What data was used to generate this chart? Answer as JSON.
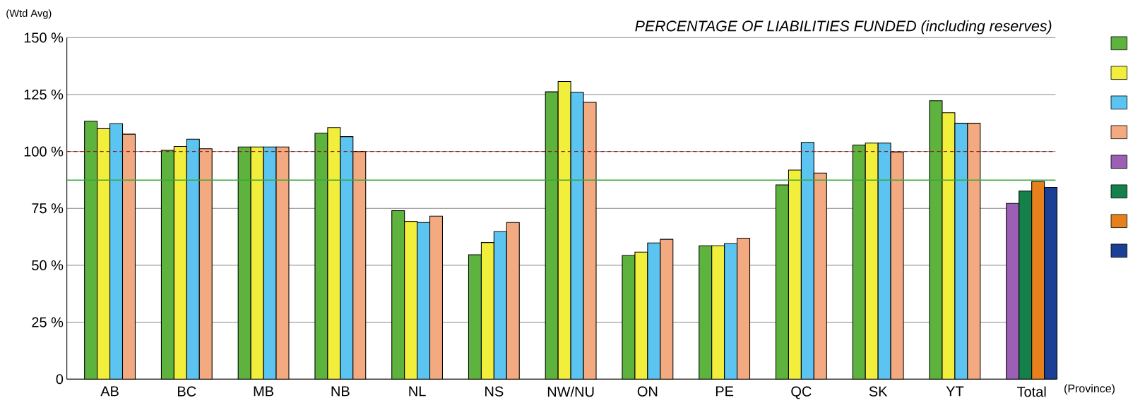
{
  "chart_data": {
    "type": "bar",
    "title": "PERCENTAGE OF LIABILITIES FUNDED (including reserves)",
    "ylabel": "(Wtd Avg)",
    "xlabel": "(Province)",
    "categories": [
      "AB",
      "BC",
      "MB",
      "NB",
      "NL",
      "NS",
      "NW/NU",
      "ON",
      "PE",
      "QC",
      "SK",
      "YT",
      "Total"
    ],
    "series": [
      {
        "color": "#5db33d",
        "values": [
          113.3,
          100.5,
          102,
          108,
          74,
          54.6,
          126.2,
          54.3,
          58.6,
          85.3,
          102.8,
          122.3,
          null
        ]
      },
      {
        "color": "#f2ee3c",
        "values": [
          110,
          102.2,
          102,
          110.5,
          69.3,
          60,
          130.7,
          55.8,
          58.6,
          91.8,
          103.7,
          117,
          null
        ]
      },
      {
        "color": "#5bc4f0",
        "values": [
          112.2,
          105.4,
          102,
          106.5,
          68.8,
          64.8,
          126,
          59.8,
          59.5,
          104,
          103.7,
          112.4,
          null
        ]
      },
      {
        "color": "#f4aa80",
        "values": [
          107.6,
          101.2,
          102,
          100,
          71.6,
          68.8,
          121.6,
          61.4,
          61.9,
          90.5,
          99.7,
          112.4,
          null
        ]
      },
      {
        "color": "#9b5fb5",
        "values": [
          null,
          null,
          null,
          null,
          null,
          null,
          null,
          null,
          null,
          null,
          null,
          null,
          77.2
        ]
      },
      {
        "color": "#14804a",
        "values": [
          null,
          null,
          null,
          null,
          null,
          null,
          null,
          null,
          null,
          null,
          null,
          null,
          82.6
        ]
      },
      {
        "color": "#e5801c",
        "values": [
          null,
          null,
          null,
          null,
          null,
          null,
          null,
          null,
          null,
          null,
          null,
          null,
          86.8
        ]
      },
      {
        "color": "#1a3f94",
        "values": [
          null,
          null,
          null,
          null,
          null,
          null,
          null,
          null,
          null,
          null,
          null,
          null,
          84.2
        ]
      }
    ],
    "ylim": [
      0,
      150
    ],
    "yticks": [
      0,
      {
        "value": 25,
        "label": "25 %"
      },
      {
        "value": 50,
        "label": "50 %"
      },
      {
        "value": 75,
        "label": "75 %"
      },
      {
        "value": 100,
        "label": "100 %"
      },
      {
        "value": 125,
        "label": "125 %"
      },
      {
        "value": 150,
        "label": "150 %"
      }
    ],
    "grid": "y",
    "ref_lines": [
      {
        "axis": "y",
        "value": 100,
        "color": "#8b1a1a",
        "line_style": "dashed"
      },
      {
        "axis": "y",
        "value": 87.4,
        "color": "#3aa83a",
        "line_style": "solid"
      }
    ]
  }
}
